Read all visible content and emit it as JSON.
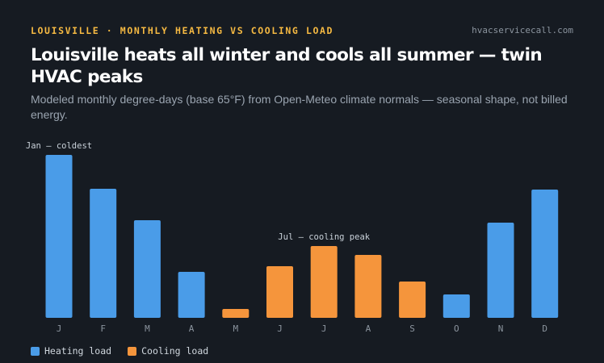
{
  "header": {
    "eyebrow": "LOUISVILLE · MONTHLY HEATING VS COOLING LOAD",
    "site": "hvacservicecall.com",
    "title": "Louisville heats all winter and cools all summer — twin HVAC peaks",
    "subtitle": "Modeled monthly degree-days (base 65°F) from Open-Meteo climate normals — seasonal shape, not billed energy."
  },
  "colors": {
    "heating": "#4a9ce8",
    "cooling": "#f5953c"
  },
  "chart_data": {
    "type": "bar",
    "categories": [
      "J",
      "F",
      "M",
      "A",
      "M",
      "J",
      "J",
      "A",
      "S",
      "O",
      "N",
      "D"
    ],
    "values": [
      1010,
      800,
      605,
      285,
      55,
      320,
      445,
      390,
      225,
      145,
      590,
      795
    ],
    "kinds": [
      "heating",
      "heating",
      "heating",
      "heating",
      "cooling",
      "cooling",
      "cooling",
      "cooling",
      "cooling",
      "heating",
      "heating",
      "heating"
    ],
    "ylim": [
      0,
      1050
    ],
    "grid": false,
    "annotations": [
      {
        "index": 0,
        "text": "Jan — coldest"
      },
      {
        "index": 6,
        "text": "Jul — cooling peak"
      }
    ],
    "legend": {
      "position": "bottom-left",
      "entries": [
        {
          "name": "Heating load",
          "kind": "heating"
        },
        {
          "name": "Cooling load",
          "kind": "cooling"
        }
      ]
    }
  }
}
